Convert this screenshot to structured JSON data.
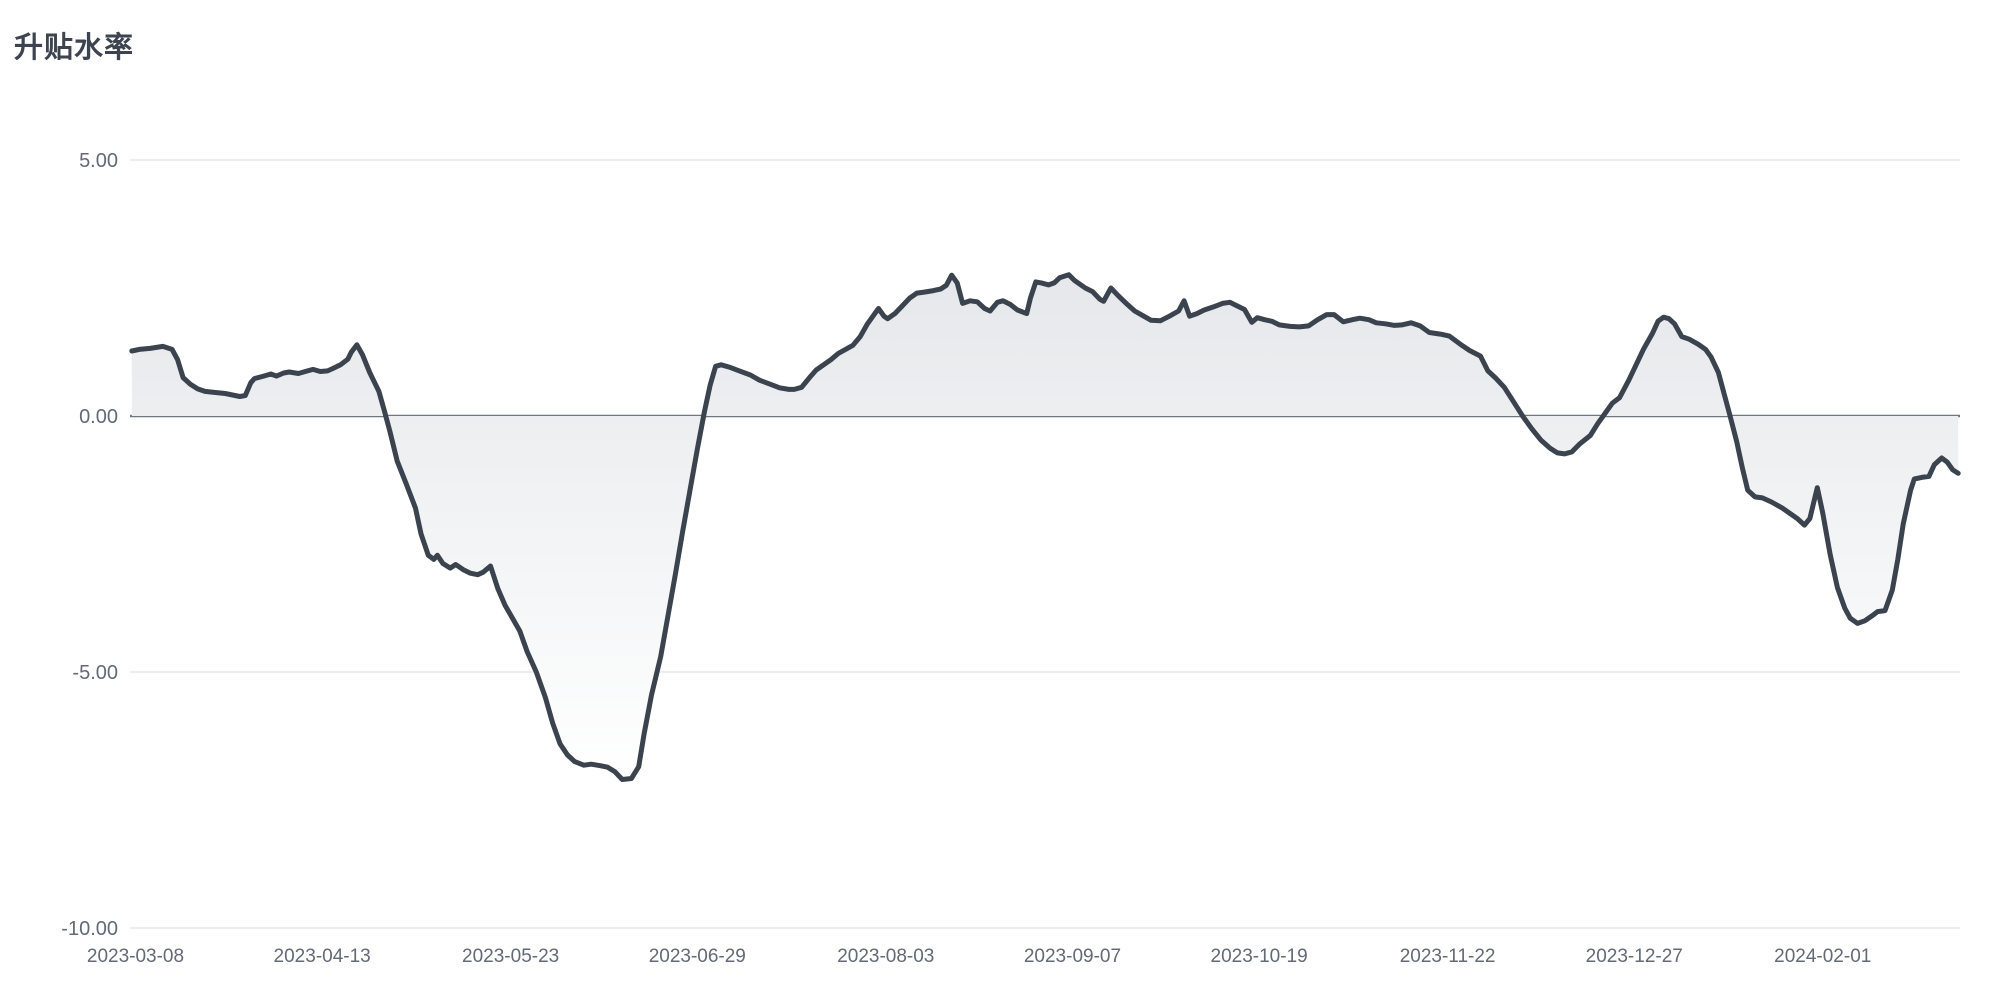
{
  "chart_data": {
    "type": "area",
    "title": "升贴水率",
    "xlabel": "",
    "ylabel": "",
    "legend": "none",
    "grid": "horizontal",
    "baseline": 0,
    "ylim": [
      -10,
      5.5
    ],
    "y_ticks": [
      {
        "label": "5.00",
        "value": 5
      },
      {
        "label": "0.00",
        "value": 0
      },
      {
        "label": "-5.00",
        "value": -5
      },
      {
        "label": "-10.00",
        "value": -10
      }
    ],
    "x_ticks": [
      {
        "label": "2023-03-08",
        "position": 0.003
      },
      {
        "label": "2023-04-13",
        "position": 0.105
      },
      {
        "label": "2023-05-23",
        "position": 0.208
      },
      {
        "label": "2023-06-29",
        "position": 0.31
      },
      {
        "label": "2023-08-03",
        "position": 0.413
      },
      {
        "label": "2023-09-07",
        "position": 0.515
      },
      {
        "label": "2023-10-19",
        "position": 0.617
      },
      {
        "label": "2023-11-22",
        "position": 0.72
      },
      {
        "label": "2023-12-27",
        "position": 0.822
      },
      {
        "label": "2024-02-01",
        "position": 0.925
      }
    ],
    "series": [
      {
        "name": "升贴水率",
        "x_unit": "fraction_of_axis",
        "points": [
          [
            0.001,
            1.27
          ],
          [
            0.005,
            1.3
          ],
          [
            0.011,
            1.32
          ],
          [
            0.018,
            1.36
          ],
          [
            0.023,
            1.3
          ],
          [
            0.026,
            1.1
          ],
          [
            0.029,
            0.75
          ],
          [
            0.033,
            0.62
          ],
          [
            0.037,
            0.53
          ],
          [
            0.041,
            0.48
          ],
          [
            0.046,
            0.46
          ],
          [
            0.052,
            0.44
          ],
          [
            0.056,
            0.41
          ],
          [
            0.06,
            0.38
          ],
          [
            0.063,
            0.4
          ],
          [
            0.066,
            0.65
          ],
          [
            0.068,
            0.73
          ],
          [
            0.073,
            0.78
          ],
          [
            0.077,
            0.82
          ],
          [
            0.08,
            0.78
          ],
          [
            0.084,
            0.84
          ],
          [
            0.087,
            0.86
          ],
          [
            0.092,
            0.83
          ],
          [
            0.097,
            0.88
          ],
          [
            0.1,
            0.91
          ],
          [
            0.104,
            0.87
          ],
          [
            0.108,
            0.88
          ],
          [
            0.111,
            0.93
          ],
          [
            0.115,
            1.0
          ],
          [
            0.119,
            1.11
          ],
          [
            0.121,
            1.25
          ],
          [
            0.124,
            1.39
          ],
          [
            0.127,
            1.2
          ],
          [
            0.131,
            0.85
          ],
          [
            0.136,
            0.48
          ],
          [
            0.139,
            0.1
          ],
          [
            0.142,
            -0.3
          ],
          [
            0.146,
            -0.88
          ],
          [
            0.151,
            -1.33
          ],
          [
            0.156,
            -1.8
          ],
          [
            0.159,
            -2.3
          ],
          [
            0.163,
            -2.72
          ],
          [
            0.166,
            -2.8
          ],
          [
            0.168,
            -2.72
          ],
          [
            0.171,
            -2.88
          ],
          [
            0.175,
            -2.97
          ],
          [
            0.178,
            -2.9
          ],
          [
            0.182,
            -3.0
          ],
          [
            0.186,
            -3.07
          ],
          [
            0.19,
            -3.1
          ],
          [
            0.193,
            -3.05
          ],
          [
            0.197,
            -2.93
          ],
          [
            0.201,
            -3.37
          ],
          [
            0.205,
            -3.7
          ],
          [
            0.209,
            -3.95
          ],
          [
            0.213,
            -4.2
          ],
          [
            0.217,
            -4.6
          ],
          [
            0.222,
            -5.0
          ],
          [
            0.227,
            -5.5
          ],
          [
            0.231,
            -6.0
          ],
          [
            0.235,
            -6.4
          ],
          [
            0.239,
            -6.62
          ],
          [
            0.243,
            -6.75
          ],
          [
            0.248,
            -6.82
          ],
          [
            0.252,
            -6.8
          ],
          [
            0.257,
            -6.83
          ],
          [
            0.261,
            -6.86
          ],
          [
            0.265,
            -6.95
          ],
          [
            0.269,
            -7.1
          ],
          [
            0.274,
            -7.08
          ],
          [
            0.278,
            -6.85
          ],
          [
            0.281,
            -6.2
          ],
          [
            0.285,
            -5.45
          ],
          [
            0.29,
            -4.7
          ],
          [
            0.294,
            -3.9
          ],
          [
            0.298,
            -3.1
          ],
          [
            0.302,
            -2.25
          ],
          [
            0.306,
            -1.45
          ],
          [
            0.31,
            -0.65
          ],
          [
            0.314,
            0.1
          ],
          [
            0.317,
            0.6
          ],
          [
            0.32,
            0.97
          ],
          [
            0.323,
            1.0
          ],
          [
            0.328,
            0.95
          ],
          [
            0.333,
            0.88
          ],
          [
            0.339,
            0.8
          ],
          [
            0.344,
            0.7
          ],
          [
            0.35,
            0.62
          ],
          [
            0.355,
            0.55
          ],
          [
            0.36,
            0.52
          ],
          [
            0.363,
            0.52
          ],
          [
            0.367,
            0.56
          ],
          [
            0.372,
            0.78
          ],
          [
            0.375,
            0.9
          ],
          [
            0.379,
            1.0
          ],
          [
            0.383,
            1.1
          ],
          [
            0.387,
            1.22
          ],
          [
            0.391,
            1.3
          ],
          [
            0.395,
            1.38
          ],
          [
            0.399,
            1.55
          ],
          [
            0.403,
            1.8
          ],
          [
            0.407,
            2.0
          ],
          [
            0.409,
            2.1
          ],
          [
            0.412,
            1.95
          ],
          [
            0.414,
            1.9
          ],
          [
            0.418,
            2.0
          ],
          [
            0.422,
            2.15
          ],
          [
            0.426,
            2.3
          ],
          [
            0.43,
            2.4
          ],
          [
            0.434,
            2.42
          ],
          [
            0.439,
            2.45
          ],
          [
            0.443,
            2.48
          ],
          [
            0.446,
            2.55
          ],
          [
            0.449,
            2.75
          ],
          [
            0.452,
            2.6
          ],
          [
            0.455,
            2.2
          ],
          [
            0.459,
            2.25
          ],
          [
            0.463,
            2.23
          ],
          [
            0.467,
            2.1
          ],
          [
            0.47,
            2.05
          ],
          [
            0.474,
            2.22
          ],
          [
            0.477,
            2.25
          ],
          [
            0.481,
            2.18
          ],
          [
            0.485,
            2.07
          ],
          [
            0.49,
            2.0
          ],
          [
            0.492,
            2.3
          ],
          [
            0.495,
            2.62
          ],
          [
            0.498,
            2.6
          ],
          [
            0.502,
            2.56
          ],
          [
            0.505,
            2.6
          ],
          [
            0.508,
            2.7
          ],
          [
            0.513,
            2.76
          ],
          [
            0.516,
            2.65
          ],
          [
            0.522,
            2.5
          ],
          [
            0.526,
            2.43
          ],
          [
            0.53,
            2.28
          ],
          [
            0.532,
            2.24
          ],
          [
            0.536,
            2.5
          ],
          [
            0.54,
            2.35
          ],
          [
            0.545,
            2.18
          ],
          [
            0.549,
            2.05
          ],
          [
            0.554,
            1.95
          ],
          [
            0.558,
            1.87
          ],
          [
            0.563,
            1.86
          ],
          [
            0.568,
            1.95
          ],
          [
            0.573,
            2.05
          ],
          [
            0.576,
            2.25
          ],
          [
            0.579,
            1.95
          ],
          [
            0.583,
            2.0
          ],
          [
            0.587,
            2.07
          ],
          [
            0.592,
            2.13
          ],
          [
            0.597,
            2.2
          ],
          [
            0.601,
            2.22
          ],
          [
            0.605,
            2.15
          ],
          [
            0.609,
            2.08
          ],
          [
            0.613,
            1.83
          ],
          [
            0.616,
            1.92
          ],
          [
            0.62,
            1.88
          ],
          [
            0.624,
            1.85
          ],
          [
            0.628,
            1.78
          ],
          [
            0.634,
            1.75
          ],
          [
            0.639,
            1.74
          ],
          [
            0.644,
            1.76
          ],
          [
            0.649,
            1.88
          ],
          [
            0.654,
            1.98
          ],
          [
            0.658,
            1.98
          ],
          [
            0.663,
            1.84
          ],
          [
            0.668,
            1.88
          ],
          [
            0.672,
            1.91
          ],
          [
            0.677,
            1.88
          ],
          [
            0.681,
            1.82
          ],
          [
            0.686,
            1.8
          ],
          [
            0.691,
            1.77
          ],
          [
            0.695,
            1.78
          ],
          [
            0.7,
            1.82
          ],
          [
            0.705,
            1.76
          ],
          [
            0.71,
            1.63
          ],
          [
            0.716,
            1.6
          ],
          [
            0.721,
            1.56
          ],
          [
            0.727,
            1.4
          ],
          [
            0.732,
            1.28
          ],
          [
            0.738,
            1.17
          ],
          [
            0.742,
            0.88
          ],
          [
            0.746,
            0.75
          ],
          [
            0.751,
            0.56
          ],
          [
            0.756,
            0.28
          ],
          [
            0.761,
            0.0
          ],
          [
            0.766,
            -0.25
          ],
          [
            0.771,
            -0.47
          ],
          [
            0.776,
            -0.63
          ],
          [
            0.78,
            -0.72
          ],
          [
            0.784,
            -0.74
          ],
          [
            0.788,
            -0.7
          ],
          [
            0.792,
            -0.55
          ],
          [
            0.798,
            -0.38
          ],
          [
            0.802,
            -0.15
          ],
          [
            0.806,
            0.05
          ],
          [
            0.81,
            0.25
          ],
          [
            0.814,
            0.36
          ],
          [
            0.819,
            0.7
          ],
          [
            0.823,
            1.0
          ],
          [
            0.827,
            1.3
          ],
          [
            0.832,
            1.62
          ],
          [
            0.835,
            1.85
          ],
          [
            0.838,
            1.93
          ],
          [
            0.841,
            1.9
          ],
          [
            0.844,
            1.8
          ],
          [
            0.848,
            1.55
          ],
          [
            0.852,
            1.5
          ],
          [
            0.857,
            1.4
          ],
          [
            0.861,
            1.3
          ],
          [
            0.864,
            1.15
          ],
          [
            0.868,
            0.85
          ],
          [
            0.871,
            0.45
          ],
          [
            0.874,
            0.05
          ],
          [
            0.878,
            -0.5
          ],
          [
            0.881,
            -1.0
          ],
          [
            0.884,
            -1.45
          ],
          [
            0.888,
            -1.58
          ],
          [
            0.892,
            -1.6
          ],
          [
            0.897,
            -1.68
          ],
          [
            0.903,
            -1.8
          ],
          [
            0.907,
            -1.9
          ],
          [
            0.911,
            -2.0
          ],
          [
            0.915,
            -2.13
          ],
          [
            0.918,
            -2.0
          ],
          [
            0.921,
            -1.55
          ],
          [
            0.922,
            -1.4
          ],
          [
            0.925,
            -1.9
          ],
          [
            0.929,
            -2.7
          ],
          [
            0.933,
            -3.35
          ],
          [
            0.937,
            -3.75
          ],
          [
            0.94,
            -3.95
          ],
          [
            0.944,
            -4.05
          ],
          [
            0.948,
            -4.0
          ],
          [
            0.952,
            -3.9
          ],
          [
            0.955,
            -3.82
          ],
          [
            0.959,
            -3.8
          ],
          [
            0.963,
            -3.4
          ],
          [
            0.966,
            -2.8
          ],
          [
            0.969,
            -2.1
          ],
          [
            0.973,
            -1.45
          ],
          [
            0.975,
            -1.23
          ],
          [
            0.979,
            -1.2
          ],
          [
            0.983,
            -1.18
          ],
          [
            0.986,
            -0.95
          ],
          [
            0.99,
            -0.82
          ],
          [
            0.993,
            -0.9
          ],
          [
            0.996,
            -1.05
          ],
          [
            0.999,
            -1.12
          ]
        ]
      }
    ]
  },
  "colors": {
    "line": "#3a434e",
    "fill_top": "#dfe2e6",
    "fill_bottom": "#ffffff",
    "grid": "#e4e7f2",
    "zero_line": "#71757f",
    "tick_text": "#636a76",
    "title_text": "#3d4450"
  }
}
